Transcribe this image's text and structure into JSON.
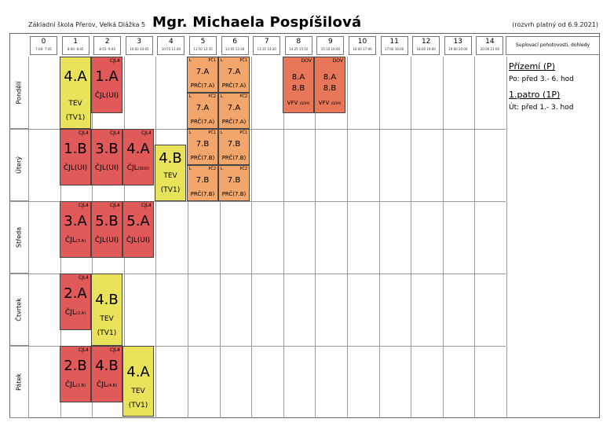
{
  "header": {
    "school": "Základní škola Přerov, Velká Dlážka 5",
    "teacher": "Mgr. Michaela Pospíšilová",
    "validity": "(rozvrh platný od 6.9.2021)",
    "side_title": "Suplovací pohotovosti, dohledy"
  },
  "periods": [
    {
      "num": "0",
      "time": "7:00- 7:45"
    },
    {
      "num": "1",
      "time": "8:00- 8:45"
    },
    {
      "num": "2",
      "time": "8:55- 9:40"
    },
    {
      "num": "3",
      "time": "10:00 10:45"
    },
    {
      "num": "4",
      "time": "10:55 11:40"
    },
    {
      "num": "5",
      "time": "11:50 12:35"
    },
    {
      "num": "6",
      "time": "12:45 13:30"
    },
    {
      "num": "7",
      "time": "13:35 14:20"
    },
    {
      "num": "8",
      "time": "14:25 15:10"
    },
    {
      "num": "9",
      "time": "15:10 16:00"
    },
    {
      "num": "10",
      "time": "16:00 17:00"
    },
    {
      "num": "11",
      "time": "17:00 18:00"
    },
    {
      "num": "12",
      "time": "18:00 19:00"
    },
    {
      "num": "13",
      "time": "19:00 20:00"
    },
    {
      "num": "14",
      "time": "20:00 21:00"
    }
  ],
  "days": [
    "Pondělí",
    "Úterý",
    "Středa",
    "Čtvrtek",
    "Pátek"
  ],
  "lessons": {
    "mon1": {
      "cls": "4.A",
      "subj": "TEV",
      "room": "(TV1)"
    },
    "mon2": {
      "tag": "CJL4",
      "cls": "1.A",
      "subj": "ČJL(UI)"
    },
    "mon_dov8": {
      "tag": "DOV",
      "c1": "8.A",
      "c2": "8.B",
      "subj": "VFV",
      "room": "(DOM)"
    },
    "mon_dov9": {
      "tag": "DOV",
      "c1": "8.A",
      "c2": "8.B",
      "subj": "VFV",
      "room": "(DOM)"
    },
    "tue1": {
      "tag": "CJL4",
      "cls": "1.B",
      "subj": "ČJL(UI)"
    },
    "tue2": {
      "tag": "CJL4",
      "cls": "3.B",
      "subj": "ČJL(UI)"
    },
    "tue3": {
      "tag": "CJL4",
      "cls": "4.A",
      "subj": "ČJL",
      "room": "(SUO)"
    },
    "tue4": {
      "cls": "4.B",
      "subj": "TEV",
      "room": "(TV1)"
    },
    "wed1": {
      "tag": "CJL4",
      "cls": "3.A",
      "subj": "ČJL",
      "room": "(3.A)"
    },
    "wed2": {
      "tag": "CJL4",
      "cls": "5.B",
      "subj": "ČJL(UI)"
    },
    "wed3": {
      "tag": "CJL4",
      "cls": "5.A",
      "subj": "ČJL(UI)"
    },
    "thu1": {
      "tag": "CJL4",
      "cls": "2.A",
      "subj": "ČJL",
      "room": "(2.A)"
    },
    "thu2": {
      "cls": "4.B",
      "subj": "TEV",
      "room": "(TV1)"
    },
    "fri1": {
      "tag": "CJL4",
      "cls": "2.B",
      "subj": "ČJL",
      "room": "(2.B)"
    },
    "fri2": {
      "tag": "CJL4",
      "cls": "4.B",
      "subj": "ČJL",
      "room": "(4.B)"
    },
    "fri3": {
      "cls": "4.A",
      "subj": "TEV",
      "room": "(TV1)"
    },
    "split": {
      "mon5a": {
        "l": "L",
        "tag": "PČ1",
        "cls": "7.A",
        "subj": "PRČ(7.A)"
      },
      "mon6a": {
        "l": "L",
        "tag": "PČ1",
        "cls": "7.A",
        "subj": "PRČ(7.A)"
      },
      "mon5b": {
        "l": "L",
        "tag": "PČ2",
        "cls": "7.A",
        "subj": "PRČ(7.A)"
      },
      "mon6b": {
        "l": "L",
        "tag": "PČ2",
        "cls": "7.A",
        "subj": "PRČ(7.A)"
      },
      "tue5a": {
        "l": "L",
        "tag": "PČ1",
        "cls": "7.B",
        "subj": "PRČ(7.B)"
      },
      "tue6a": {
        "l": "L",
        "tag": "PČ1",
        "cls": "7.B",
        "subj": "PRČ(7.B)"
      },
      "tue5b": {
        "l": "L",
        "tag": "PČ2",
        "cls": "7.B",
        "subj": "PRČ(7.B)"
      },
      "tue6b": {
        "l": "L",
        "tag": "PČ2",
        "cls": "7.B",
        "subj": "PRČ(7.B)"
      }
    }
  },
  "notes": {
    "floor0": "Přízemí (P)",
    "floor0_line": "Po: před 3.- 6. hod",
    "floor1": "1.patro (1P)",
    "floor1_line": "Út: před 1.- 3. hod"
  },
  "colors": {
    "czech": "#e05a5a",
    "pe": "#e9e35c",
    "prc": "#f2a66b",
    "dov": "#e8775a"
  }
}
